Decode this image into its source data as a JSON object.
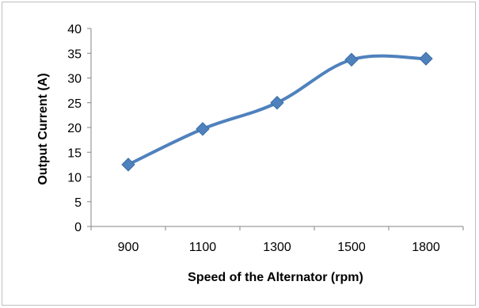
{
  "chart_data": {
    "type": "line",
    "title": "",
    "xlabel": "Speed  of the Alternator (rpm)",
    "ylabel": "Output Current (A)",
    "categories": [
      "900",
      "1100",
      "1300",
      "1500",
      "1800"
    ],
    "series": [
      {
        "values": [
          12.5,
          19.7,
          25.0,
          33.7,
          33.9
        ]
      }
    ],
    "ylim": [
      0,
      40
    ],
    "yticks": [
      "0",
      "5",
      "10",
      "15",
      "20",
      "25",
      "30",
      "35",
      "40"
    ],
    "grid": false,
    "legend": "none",
    "marker": "diamond",
    "smooth": true,
    "line_color": "#4F81BD"
  }
}
